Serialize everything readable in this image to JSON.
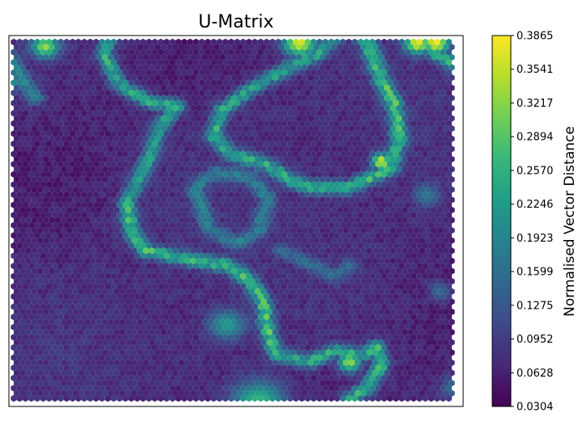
{
  "chart_data": {
    "type": "heatmap",
    "title": "U-Matrix",
    "xlabel": "",
    "ylabel": "",
    "grid": false,
    "colormap": "viridis",
    "cell_shape": "hexagon",
    "x_ticks": [],
    "y_ticks": [],
    "colorbar": {
      "label": "Normalised Vector Distance",
      "min": 0.0304,
      "max": 0.3865,
      "ticks": [
        "0.3865",
        "0.3541",
        "0.3217",
        "0.2894",
        "0.2570",
        "0.2246",
        "0.1923",
        "0.1599",
        "0.1275",
        "0.0952",
        "0.0628",
        "0.0304"
      ],
      "stops": [
        "#440154",
        "#482878",
        "#3e4989",
        "#31688e",
        "#26828e",
        "#1f9e89",
        "#35b779",
        "#6ece58",
        "#b5de2b",
        "#fde725"
      ]
    },
    "features": [
      {
        "kind": "ridge",
        "points": [
          [
            0.22,
            0.0
          ],
          [
            0.21,
            0.05
          ],
          [
            0.24,
            0.13
          ],
          [
            0.31,
            0.18
          ],
          [
            0.37,
            0.19
          ]
        ],
        "value": 0.24
      },
      {
        "kind": "ridge",
        "points": [
          [
            0.37,
            0.19
          ],
          [
            0.33,
            0.25
          ],
          [
            0.31,
            0.33
          ],
          [
            0.28,
            0.4
          ],
          [
            0.26,
            0.45
          ]
        ],
        "value": 0.23
      },
      {
        "kind": "ridge",
        "points": [
          [
            0.26,
            0.45
          ],
          [
            0.27,
            0.53
          ],
          [
            0.3,
            0.58
          ],
          [
            0.38,
            0.6
          ],
          [
            0.48,
            0.62
          ]
        ],
        "value": 0.26
      },
      {
        "kind": "ridge",
        "points": [
          [
            0.48,
            0.62
          ],
          [
            0.53,
            0.66
          ],
          [
            0.56,
            0.72
          ],
          [
            0.57,
            0.8
          ],
          [
            0.59,
            0.86
          ]
        ],
        "value": 0.27
      },
      {
        "kind": "ridge",
        "points": [
          [
            0.59,
            0.86
          ],
          [
            0.66,
            0.88
          ],
          [
            0.72,
            0.85
          ],
          [
            0.78,
            0.86
          ],
          [
            0.81,
            0.84
          ]
        ],
        "value": 0.24
      },
      {
        "kind": "ridge",
        "points": [
          [
            0.81,
            0.84
          ],
          [
            0.82,
            0.89
          ],
          [
            0.79,
            0.95
          ],
          [
            0.75,
            0.98
          ]
        ],
        "value": 0.25
      },
      {
        "kind": "ridge",
        "points": [
          [
            0.72,
            0.0
          ],
          [
            0.68,
            0.05
          ],
          [
            0.61,
            0.09
          ],
          [
            0.54,
            0.14
          ],
          [
            0.47,
            0.2
          ]
        ],
        "value": 0.23
      },
      {
        "kind": "ridge",
        "points": [
          [
            0.47,
            0.2
          ],
          [
            0.45,
            0.27
          ],
          [
            0.49,
            0.32
          ],
          [
            0.57,
            0.35
          ],
          [
            0.62,
            0.39
          ]
        ],
        "value": 0.24
      },
      {
        "kind": "ridge",
        "points": [
          [
            0.62,
            0.39
          ],
          [
            0.66,
            0.41
          ],
          [
            0.75,
            0.41
          ],
          [
            0.84,
            0.36
          ],
          [
            0.86,
            0.28
          ]
        ],
        "value": 0.25
      },
      {
        "kind": "ridge",
        "points": [
          [
            0.86,
            0.28
          ],
          [
            0.85,
            0.19
          ],
          [
            0.82,
            0.12
          ],
          [
            0.8,
            0.05
          ],
          [
            0.78,
            0.0
          ]
        ],
        "value": 0.28
      },
      {
        "kind": "ridge",
        "points": [
          [
            0.89,
            0.0
          ],
          [
            0.94,
            0.05
          ],
          [
            1.0,
            0.09
          ]
        ],
        "value": 0.24
      },
      {
        "kind": "ridge",
        "points": [
          [
            0.0,
            0.06
          ],
          [
            0.03,
            0.12
          ],
          [
            0.06,
            0.17
          ]
        ],
        "value": 0.19
      },
      {
        "kind": "ridge",
        "points": [
          [
            0.41,
            0.42
          ],
          [
            0.44,
            0.52
          ],
          [
            0.5,
            0.56
          ],
          [
            0.55,
            0.53
          ],
          [
            0.57,
            0.44
          ],
          [
            0.53,
            0.38
          ],
          [
            0.46,
            0.37
          ],
          [
            0.42,
            0.4
          ]
        ],
        "value": 0.18
      },
      {
        "kind": "ridge",
        "points": [
          [
            0.6,
            0.58
          ],
          [
            0.67,
            0.62
          ],
          [
            0.72,
            0.65
          ],
          [
            0.75,
            0.62
          ]
        ],
        "value": 0.15
      },
      {
        "kind": "spot",
        "center": [
          0.48,
          0.78
        ],
        "radius": 0.028,
        "value": 0.22
      },
      {
        "kind": "spot",
        "center": [
          0.75,
          0.88
        ],
        "radius": 0.018,
        "value": 0.33
      },
      {
        "kind": "spot",
        "center": [
          0.92,
          0.43
        ],
        "radius": 0.02,
        "value": 0.17
      },
      {
        "kind": "spot",
        "center": [
          0.95,
          0.69
        ],
        "radius": 0.018,
        "value": 0.15
      },
      {
        "kind": "spot",
        "center": [
          0.98,
          0.95
        ],
        "radius": 0.02,
        "value": 0.16
      },
      {
        "kind": "spot",
        "center": [
          0.55,
          0.99
        ],
        "radius": 0.04,
        "value": 0.27
      },
      {
        "kind": "spot",
        "center": [
          0.64,
          0.02
        ],
        "radius": 0.025,
        "value": 0.37
      },
      {
        "kind": "spot",
        "center": [
          0.9,
          0.02
        ],
        "radius": 0.02,
        "value": 0.38
      },
      {
        "kind": "spot",
        "center": [
          0.94,
          0.02
        ],
        "radius": 0.02,
        "value": 0.39
      },
      {
        "kind": "spot",
        "center": [
          0.08,
          0.03
        ],
        "radius": 0.02,
        "value": 0.33
      },
      {
        "kind": "spot",
        "center": [
          0.82,
          0.34
        ],
        "radius": 0.015,
        "value": 0.37
      },
      {
        "kind": "spot",
        "center": [
          0.0,
          0.12
        ],
        "radius": 0.02,
        "value": 0.22
      }
    ]
  }
}
